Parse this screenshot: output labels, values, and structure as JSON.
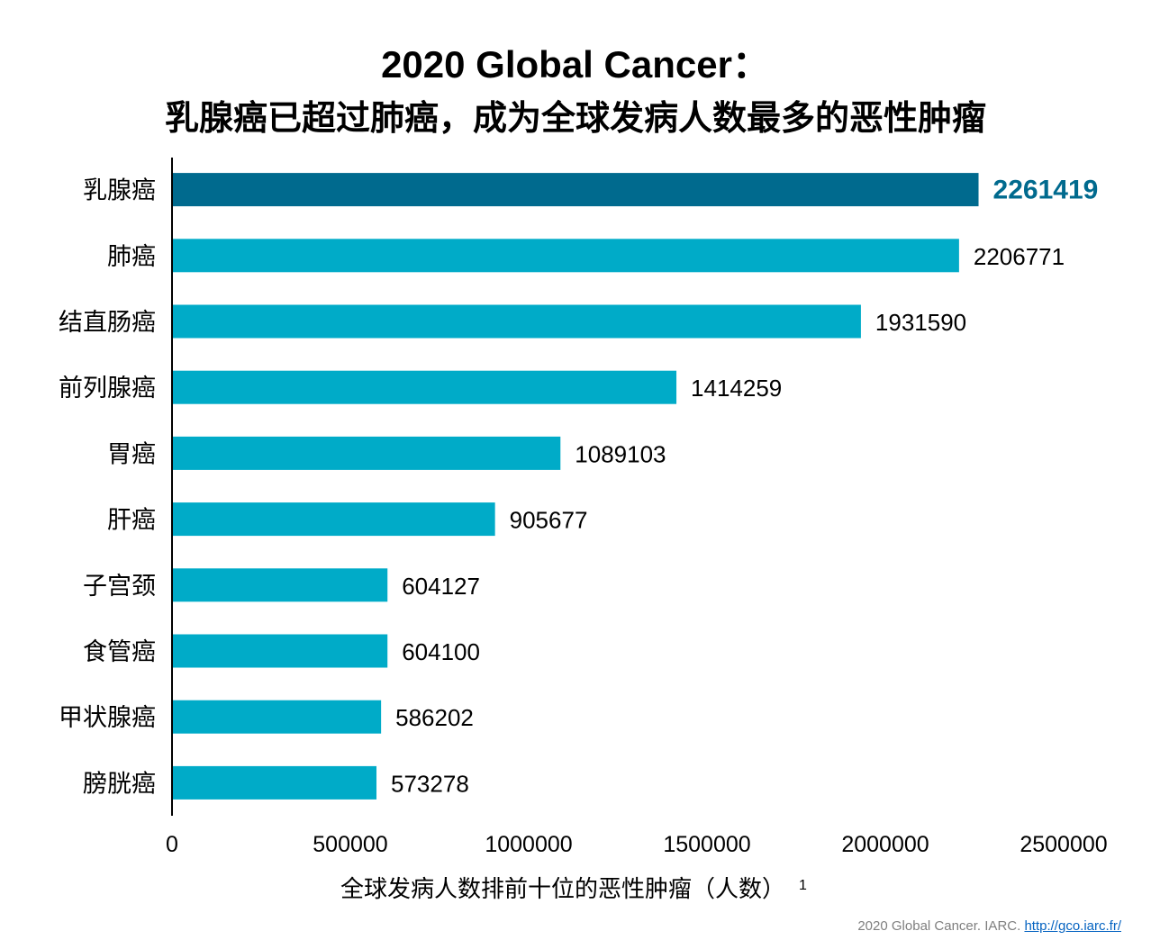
{
  "title": "2020 Global Cancer：",
  "subtitle": "乳腺癌已超过肺癌，成为全球发病人数最多的恶性肿瘤",
  "source": {
    "text": "2020 Global Cancer. IARC.",
    "link": "http://gco.iarc.fr/"
  },
  "colors": {
    "bar": "#00abc8",
    "highlight_bar": "#006a8e",
    "highlight_label": "#006a8e"
  },
  "chart_data": {
    "type": "bar",
    "orientation": "horizontal",
    "categories": [
      "乳腺癌",
      "肺癌",
      "结直肠癌",
      "前列腺癌",
      "胃癌",
      "肝癌",
      "子宫颈",
      "食管癌",
      "甲状腺癌",
      "膀胱癌"
    ],
    "values": [
      2261419,
      2206771,
      1931590,
      1414259,
      1089103,
      905677,
      604127,
      604100,
      586202,
      573278
    ],
    "highlight_index": 0,
    "xlabel": "全球发病人数排前十位的恶性肿瘤（人数）",
    "xlabel_superscript": "1",
    "xlim": [
      0,
      2500000
    ],
    "xticks": [
      "0",
      "500000",
      "1000000",
      "1500000",
      "2000000",
      "2500000"
    ],
    "grid": false,
    "legend": "none"
  }
}
